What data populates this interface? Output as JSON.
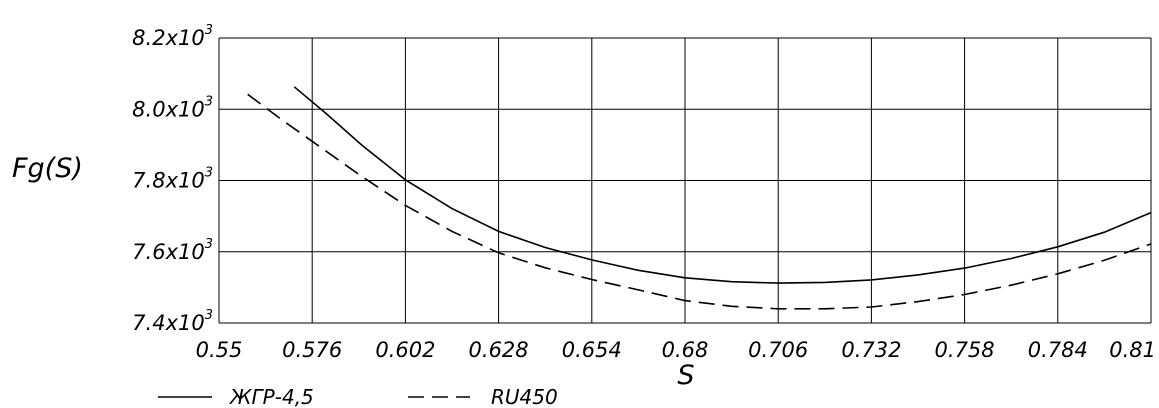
{
  "chart_data": {
    "type": "line",
    "title": "",
    "xlabel": "S",
    "ylabel": "Fg(S)",
    "xlim": [
      0.55,
      0.81
    ],
    "ylim": [
      7400,
      8200
    ],
    "grid": true,
    "legend_position": "bottom-left",
    "x_ticks": [
      0.55,
      0.576,
      0.602,
      0.628,
      0.654,
      0.68,
      0.706,
      0.732,
      0.758,
      0.784,
      0.81
    ],
    "x_tick_labels": [
      "0.55",
      "0.576",
      "0.602",
      "0.628",
      "0.654",
      "0.68",
      "0.706",
      "0.732",
      "0.758",
      "0.784",
      "0.81"
    ],
    "y_ticks": [
      7400,
      7600,
      7800,
      8000,
      8200
    ],
    "y_tick_labels": [
      {
        "base": "7.4x10",
        "exp": "3"
      },
      {
        "base": "7.6x10",
        "exp": "3"
      },
      {
        "base": "7.8x10",
        "exp": "3"
      },
      {
        "base": "8.0x10",
        "exp": "3"
      },
      {
        "base": "8.2x10",
        "exp": "3"
      }
    ],
    "series": [
      {
        "name": "ЖГР-4,5",
        "style": "solid",
        "color": "#000000",
        "x": [
          0.571,
          0.58,
          0.59,
          0.602,
          0.615,
          0.628,
          0.641,
          0.654,
          0.667,
          0.68,
          0.693,
          0.706,
          0.719,
          0.732,
          0.745,
          0.758,
          0.771,
          0.784,
          0.797,
          0.81
        ],
        "y": [
          8063,
          7987,
          7898,
          7802,
          7721,
          7657,
          7612,
          7577,
          7548,
          7527,
          7516,
          7512,
          7514,
          7521,
          7535,
          7554,
          7581,
          7614,
          7655,
          7710
        ]
      },
      {
        "name": "RU450",
        "style": "dashed",
        "color": "#000000",
        "x": [
          0.558,
          0.568,
          0.576,
          0.589,
          0.602,
          0.615,
          0.628,
          0.641,
          0.654,
          0.667,
          0.68,
          0.693,
          0.706,
          0.719,
          0.732,
          0.745,
          0.758,
          0.771,
          0.784,
          0.797,
          0.81
        ],
        "y": [
          8042,
          7967,
          7910,
          7817,
          7730,
          7657,
          7597,
          7555,
          7522,
          7493,
          7463,
          7447,
          7440,
          7440,
          7445,
          7460,
          7480,
          7506,
          7538,
          7576,
          7622
        ]
      }
    ]
  }
}
